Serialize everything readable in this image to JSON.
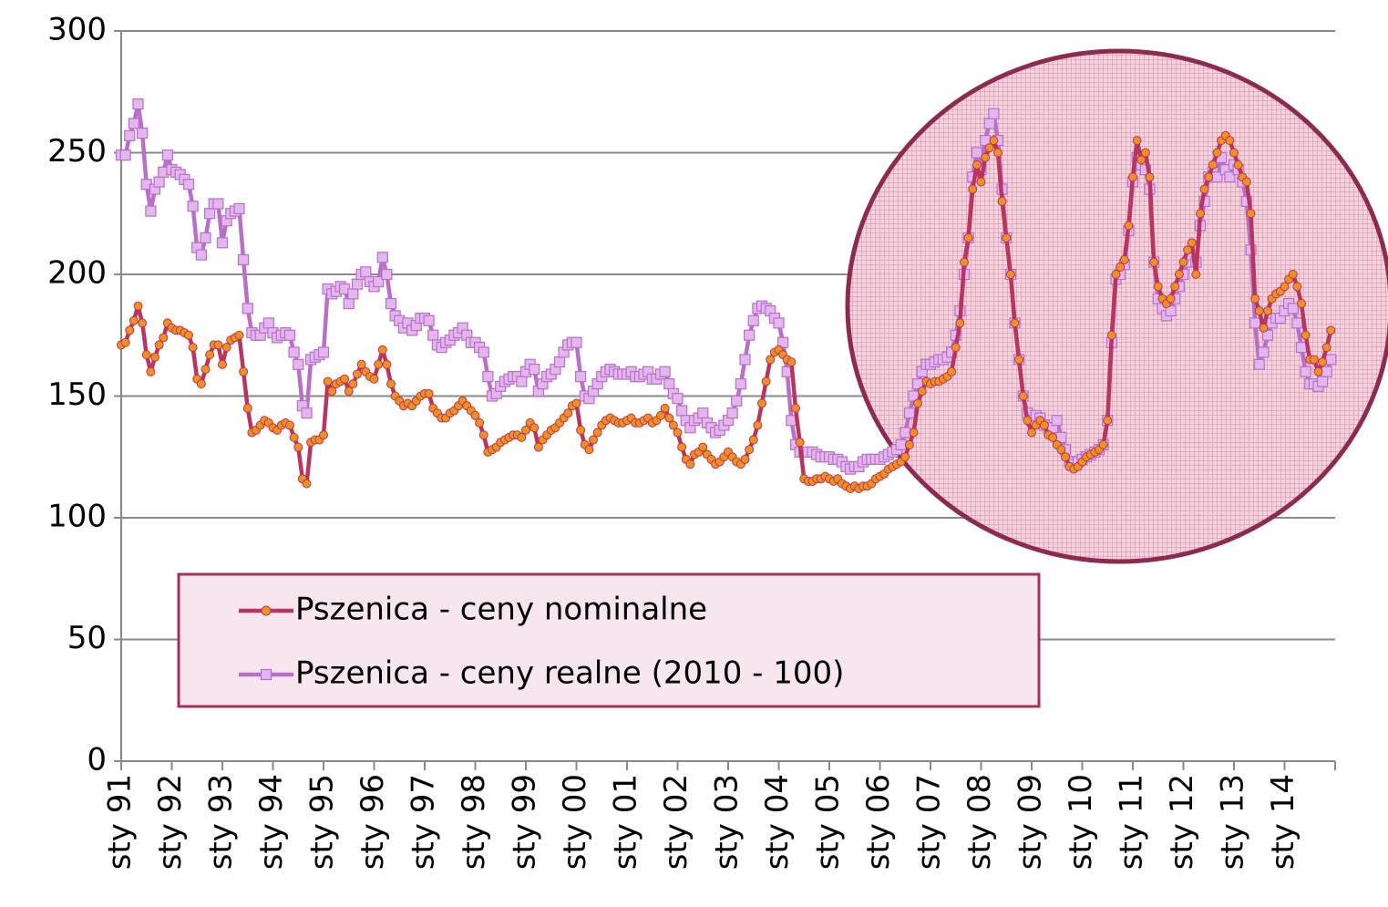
{
  "chart_data": {
    "type": "line",
    "categories": [
      "sty 91",
      null,
      null,
      null,
      null,
      null,
      null,
      null,
      null,
      null,
      null,
      null,
      "sty 92",
      null,
      null,
      null,
      null,
      null,
      null,
      null,
      null,
      null,
      null,
      null,
      "sty 93",
      null,
      null,
      null,
      null,
      null,
      null,
      null,
      null,
      null,
      null,
      null,
      "sty 94",
      null,
      null,
      null,
      null,
      null,
      null,
      null,
      null,
      null,
      null,
      null,
      "sty 95",
      null,
      null,
      null,
      null,
      null,
      null,
      null,
      null,
      null,
      null,
      null,
      "sty 96",
      null,
      null,
      null,
      null,
      null,
      null,
      null,
      null,
      null,
      null,
      null,
      "sty 97",
      null,
      null,
      null,
      null,
      null,
      null,
      null,
      null,
      null,
      null,
      null,
      "sty 98",
      null,
      null,
      null,
      null,
      null,
      null,
      null,
      null,
      null,
      null,
      null,
      "sty 99",
      null,
      null,
      null,
      null,
      null,
      null,
      null,
      null,
      null,
      null,
      null,
      "sty 00",
      null,
      null,
      null,
      null,
      null,
      null,
      null,
      null,
      null,
      null,
      null,
      "sty 01",
      null,
      null,
      null,
      null,
      null,
      null,
      null,
      null,
      null,
      null,
      null,
      "sty 02",
      null,
      null,
      null,
      null,
      null,
      null,
      null,
      null,
      null,
      null,
      null,
      "sty 03",
      null,
      null,
      null,
      null,
      null,
      null,
      null,
      null,
      null,
      null,
      null,
      "sty 04",
      null,
      null,
      null,
      null,
      null,
      null,
      null,
      null,
      null,
      null,
      null,
      "sty 05",
      null,
      null,
      null,
      null,
      null,
      null,
      null,
      null,
      null,
      null,
      null,
      "sty 06",
      null,
      null,
      null,
      null,
      null,
      null,
      null,
      null,
      null,
      null,
      null,
      "sty 07",
      null,
      null,
      null,
      null,
      null,
      null,
      null,
      null,
      null,
      null,
      null,
      "sty 08",
      null,
      null,
      null,
      null,
      null,
      null,
      null,
      null,
      null,
      null,
      null,
      "sty 09",
      null,
      null,
      null,
      null,
      null,
      null,
      null,
      null,
      null,
      null,
      null,
      "sty 10",
      null,
      null,
      null,
      null,
      null,
      null,
      null,
      null,
      null,
      null,
      null,
      "sty 11",
      null,
      null,
      null,
      null,
      null,
      null,
      null,
      null,
      null,
      null,
      null,
      "sty 12",
      null,
      null,
      null,
      null,
      null,
      null,
      null,
      null,
      null,
      null,
      null,
      "sty 13",
      null,
      null,
      null,
      null,
      null,
      null,
      null,
      null,
      null,
      null,
      null,
      "sty 14",
      null,
      null,
      null,
      null,
      null,
      null,
      null,
      null,
      null,
      null,
      null
    ],
    "series": [
      {
        "name": "Pszenica - ceny nominalne",
        "color": "#b8355e",
        "marker_color": "#f0901e",
        "marker": "circle",
        "values": [
          171,
          172,
          177,
          181,
          187,
          180,
          167,
          160,
          166,
          171,
          174,
          180,
          178,
          177,
          177,
          176,
          175,
          170,
          157,
          155,
          161,
          167,
          171,
          171,
          163,
          170,
          173,
          174,
          175,
          160,
          145,
          135,
          136,
          138,
          140,
          139,
          137,
          136,
          138,
          139,
          138,
          133,
          129,
          116,
          114,
          131,
          132,
          132,
          134,
          156,
          152,
          155,
          156,
          157,
          152,
          155,
          159,
          163,
          160,
          158,
          157,
          163,
          169,
          163,
          155,
          150,
          148,
          146,
          147,
          146,
          148,
          150,
          151,
          151,
          145,
          143,
          141,
          141,
          143,
          144,
          146,
          148,
          146,
          144,
          142,
          139,
          134,
          127,
          128,
          129,
          131,
          132,
          133,
          134,
          134,
          133,
          136,
          139,
          137,
          129,
          132,
          134,
          136,
          137,
          139,
          141,
          143,
          146,
          147,
          136,
          130,
          128,
          132,
          135,
          138,
          140,
          141,
          140,
          139,
          139,
          140,
          141,
          139,
          139,
          140,
          141,
          139,
          140,
          142,
          145,
          141,
          138,
          135,
          129,
          124,
          122,
          126,
          127,
          129,
          126,
          124,
          122,
          123,
          125,
          127,
          125,
          123,
          122,
          124,
          128,
          132,
          138,
          147,
          156,
          165,
          168,
          169,
          167,
          165,
          164,
          145,
          131,
          116,
          115,
          115,
          116,
          116,
          117,
          116,
          115,
          116,
          114,
          113,
          112,
          113,
          112,
          113,
          113,
          114,
          116,
          117,
          118,
          120,
          121,
          122,
          123,
          125,
          130,
          135,
          147,
          152,
          156,
          155,
          156,
          156,
          157,
          158,
          160,
          170,
          180,
          205,
          215,
          235,
          245,
          238,
          248,
          252,
          255,
          250,
          230,
          215,
          200,
          180,
          165,
          150,
          140,
          135,
          138,
          140,
          138,
          134,
          133,
          130,
          128,
          125,
          121,
          120,
          121,
          123,
          125,
          126,
          127,
          128,
          130,
          140,
          175,
          200,
          203,
          206,
          220,
          240,
          255,
          247,
          250,
          240,
          205,
          195,
          190,
          188,
          190,
          195,
          200,
          205,
          210,
          213,
          200,
          225,
          235,
          240,
          245,
          250,
          255,
          257,
          255,
          250,
          245,
          240,
          238,
          225,
          190,
          185,
          178,
          185,
          190,
          192,
          193,
          195,
          198,
          200,
          195,
          188,
          175,
          165,
          165,
          160,
          164,
          170,
          177
        ]
      },
      {
        "name": "Pszenica - ceny realne (2010 - 100)",
        "color": "#b86fc8",
        "marker_color": "#e4b6ee",
        "marker": "square",
        "values": [
          249,
          249,
          257,
          262,
          270,
          258,
          237,
          226,
          235,
          238,
          242,
          249,
          243,
          242,
          241,
          239,
          237,
          228,
          211,
          208,
          215,
          225,
          229,
          229,
          213,
          222,
          225,
          226,
          227,
          206,
          186,
          176,
          175,
          175,
          178,
          180,
          176,
          174,
          175,
          176,
          175,
          168,
          163,
          146,
          143,
          165,
          166,
          167,
          168,
          194,
          192,
          193,
          195,
          194,
          188,
          192,
          196,
          200,
          201,
          197,
          195,
          197,
          207,
          200,
          188,
          183,
          181,
          178,
          180,
          177,
          179,
          182,
          182,
          181,
          175,
          171,
          170,
          172,
          173,
          175,
          176,
          178,
          175,
          172,
          172,
          170,
          168,
          158,
          150,
          151,
          154,
          156,
          157,
          158,
          158,
          156,
          160,
          163,
          161,
          152,
          155,
          158,
          159,
          161,
          164,
          168,
          171,
          172,
          172,
          158,
          150,
          149,
          152,
          155,
          158,
          160,
          161,
          160,
          159,
          159,
          159,
          160,
          158,
          158,
          159,
          160,
          157,
          157,
          159,
          160,
          155,
          151,
          149,
          144,
          140,
          137,
          140,
          141,
          143,
          139,
          137,
          135,
          136,
          138,
          140,
          143,
          148,
          155,
          165,
          175,
          181,
          186,
          187,
          186,
          185,
          182,
          180,
          172,
          160,
          140,
          130,
          127,
          127,
          127,
          127,
          126,
          125,
          125,
          125,
          124,
          124,
          123,
          121,
          120,
          121,
          121,
          123,
          124,
          124,
          124,
          124,
          125,
          126,
          127,
          128,
          130,
          135,
          143,
          150,
          155,
          160,
          163,
          163,
          164,
          165,
          165,
          166,
          168,
          175,
          185,
          200,
          215,
          240,
          250,
          243,
          255,
          262,
          266,
          255,
          235,
          215,
          200,
          180,
          165,
          150,
          143,
          140,
          142,
          141,
          138,
          137,
          137,
          140,
          133,
          128,
          123,
          122,
          123,
          124,
          125,
          126,
          127,
          128,
          130,
          140,
          172,
          198,
          200,
          204,
          218,
          238,
          248,
          245,
          243,
          235,
          205,
          190,
          186,
          183,
          185,
          190,
          195,
          200,
          205,
          208,
          205,
          220,
          230,
          240,
          242,
          240,
          248,
          243,
          240,
          245,
          243,
          238,
          230,
          210,
          180,
          163,
          168,
          175,
          180,
          182,
          182,
          185,
          188,
          186,
          180,
          170,
          160,
          155,
          155,
          154,
          156,
          160,
          165
        ]
      }
    ],
    "ylim": [
      0,
      300
    ],
    "yticks": [
      0,
      50,
      100,
      150,
      200,
      250,
      300
    ],
    "grid": true
  }
}
